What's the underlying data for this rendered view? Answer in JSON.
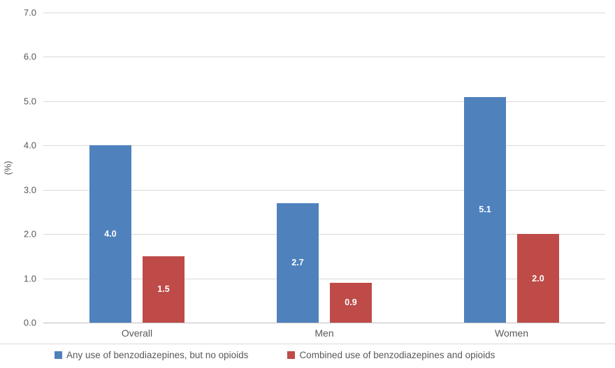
{
  "chart_data": {
    "type": "bar",
    "categories": [
      "Overall",
      "Men",
      "Women"
    ],
    "series": [
      {
        "name": "Any use of benzodiazepines, but no opioids",
        "color": "#4f81bd",
        "values": [
          4.0,
          2.7,
          5.1
        ]
      },
      {
        "name": "Combined use of benzodiazepines and opioids",
        "color": "#be4b48",
        "values": [
          1.5,
          0.9,
          2.0
        ]
      }
    ],
    "ylabel": "(%)",
    "ylim": [
      0,
      7
    ],
    "yticks": [
      "0.0",
      "1.0",
      "2.0",
      "3.0",
      "4.0",
      "5.0",
      "6.0",
      "7.0"
    ],
    "grid": true,
    "legend_position": "bottom",
    "data_labels": {
      "show": true,
      "position": "center",
      "color": "#ffffff"
    }
  }
}
